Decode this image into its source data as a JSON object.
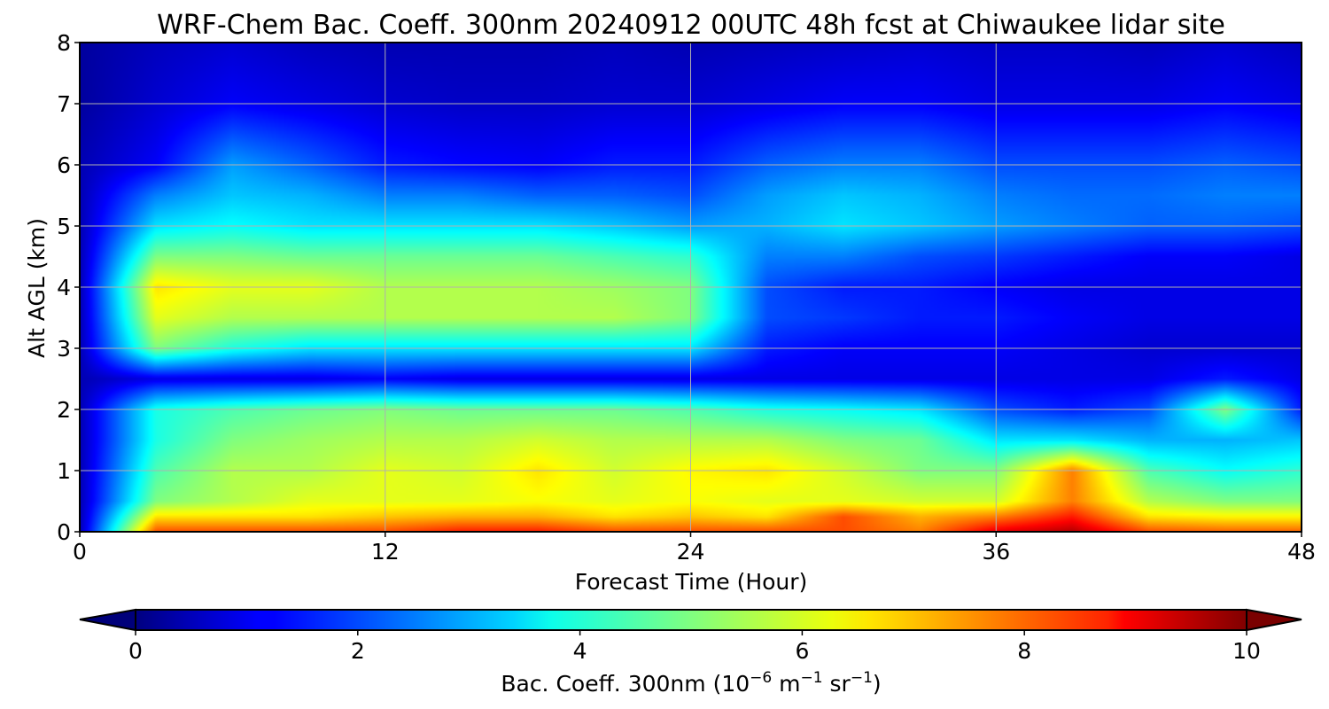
{
  "chart_data": {
    "type": "heatmap",
    "title": "WRF-Chem Bac. Coeff. 300nm  20240912 00UTC 48h fcst at Chiwaukee lidar site",
    "xlabel": "Forecast Time (Hour)",
    "ylabel": "Alt AGL (km)",
    "xlim": [
      0,
      48
    ],
    "ylim": [
      0,
      8
    ],
    "x_ticks": [
      0,
      12,
      24,
      36,
      48
    ],
    "x_tick_labels": [
      "0",
      "12",
      "24",
      "36",
      "48"
    ],
    "y_ticks": [
      0,
      1,
      2,
      3,
      4,
      5,
      6,
      7,
      8
    ],
    "y_tick_labels": [
      "0",
      "1",
      "2",
      "3",
      "4",
      "5",
      "6",
      "7",
      "8"
    ],
    "grid": true,
    "colormap": "jet",
    "colorbar": {
      "orientation": "horizontal",
      "range": [
        0,
        10
      ],
      "extend": "both",
      "ticks": [
        0,
        2,
        4,
        6,
        8,
        10
      ],
      "tick_labels": [
        "0",
        "2",
        "4",
        "6",
        "8",
        "10"
      ],
      "label_prefix": "Bac. Coeff. 300nm  (10",
      "label_exp1": "−6",
      "label_mid1": " m",
      "label_exp2": "−1",
      "label_mid2": " sr",
      "label_exp3": "−1",
      "label_suffix": ")"
    },
    "field_hours": [
      0,
      3,
      6,
      9,
      12,
      15,
      18,
      21,
      24,
      27,
      30,
      33,
      36,
      39,
      42,
      45,
      48
    ],
    "field_altitudes_km": [
      0,
      0.25,
      0.5,
      1,
      1.5,
      2,
      2.5,
      3,
      3.5,
      4,
      4.5,
      5,
      5.5,
      6,
      7,
      8
    ],
    "field_values": [
      [
        0.5,
        8.0,
        8.0,
        8.0,
        8.0,
        8.5,
        8.5,
        8.0,
        8.0,
        8.0,
        8.0,
        7.5,
        9.0,
        9.5,
        8.0,
        7.8,
        7.8
      ],
      [
        0.5,
        6.5,
        6.5,
        6.5,
        6.8,
        7.0,
        7.0,
        6.5,
        6.8,
        6.5,
        8.0,
        7.0,
        7.5,
        8.5,
        6.5,
        6.3,
        6.3
      ],
      [
        0.5,
        5.0,
        5.5,
        6.0,
        6.0,
        6.0,
        6.2,
        6.0,
        6.2,
        6.0,
        6.0,
        5.8,
        5.8,
        7.5,
        5.5,
        5.0,
        5.0
      ],
      [
        0.5,
        4.5,
        5.5,
        5.5,
        6.0,
        5.8,
        6.5,
        5.8,
        6.3,
        6.5,
        5.8,
        5.0,
        5.0,
        7.5,
        4.5,
        3.8,
        4.2
      ],
      [
        0.5,
        4.0,
        5.0,
        5.3,
        5.5,
        5.5,
        5.8,
        5.5,
        5.5,
        5.5,
        5.0,
        4.8,
        3.5,
        3.5,
        3.0,
        3.0,
        3.2
      ],
      [
        0.5,
        4.0,
        4.5,
        4.8,
        5.0,
        4.8,
        4.8,
        4.8,
        4.5,
        4.0,
        3.8,
        3.5,
        2.0,
        1.5,
        2.0,
        5.0,
        1.5
      ],
      [
        0.5,
        1.0,
        1.0,
        1.0,
        1.2,
        1.0,
        1.0,
        1.0,
        1.0,
        1.0,
        1.0,
        1.0,
        1.0,
        1.0,
        1.0,
        1.5,
        1.0
      ],
      [
        0.5,
        5.0,
        4.0,
        3.5,
        3.5,
        3.5,
        3.5,
        3.5,
        3.5,
        1.5,
        1.2,
        1.2,
        1.2,
        1.0,
        0.8,
        0.8,
        0.8
      ],
      [
        0.5,
        6.0,
        5.5,
        5.5,
        5.5,
        5.5,
        5.5,
        5.5,
        5.0,
        2.0,
        1.8,
        1.5,
        1.5,
        1.2,
        1.0,
        1.0,
        1.0
      ],
      [
        0.5,
        6.5,
        6.0,
        6.0,
        5.5,
        5.5,
        5.5,
        5.3,
        5.0,
        2.0,
        1.5,
        1.5,
        1.2,
        1.0,
        1.0,
        1.0,
        1.0
      ],
      [
        0.5,
        5.0,
        5.0,
        4.8,
        4.8,
        4.8,
        4.8,
        4.5,
        4.2,
        2.5,
        2.5,
        2.0,
        1.8,
        1.5,
        1.2,
        1.2,
        1.0
      ],
      [
        0.5,
        3.5,
        3.8,
        3.5,
        3.5,
        3.5,
        3.5,
        3.2,
        2.8,
        3.0,
        3.5,
        3.2,
        2.8,
        2.5,
        2.2,
        2.2,
        2.0
      ],
      [
        0.5,
        2.5,
        3.2,
        3.0,
        2.5,
        2.5,
        2.2,
        2.2,
        2.0,
        2.8,
        3.2,
        3.0,
        2.5,
        2.3,
        2.3,
        2.5,
        2.5
      ],
      [
        0.5,
        1.2,
        2.8,
        2.2,
        1.5,
        1.3,
        1.2,
        1.5,
        1.5,
        2.2,
        2.5,
        2.5,
        2.0,
        2.0,
        2.0,
        2.2,
        2.0
      ],
      [
        0.3,
        0.8,
        1.2,
        1.0,
        0.8,
        0.7,
        0.7,
        0.8,
        0.8,
        1.0,
        1.2,
        1.2,
        1.0,
        1.0,
        1.0,
        1.2,
        1.0
      ],
      [
        0.3,
        0.6,
        0.8,
        0.6,
        0.5,
        0.5,
        0.5,
        0.6,
        0.5,
        0.6,
        0.7,
        0.8,
        0.7,
        0.7,
        0.6,
        0.8,
        0.6
      ]
    ]
  }
}
